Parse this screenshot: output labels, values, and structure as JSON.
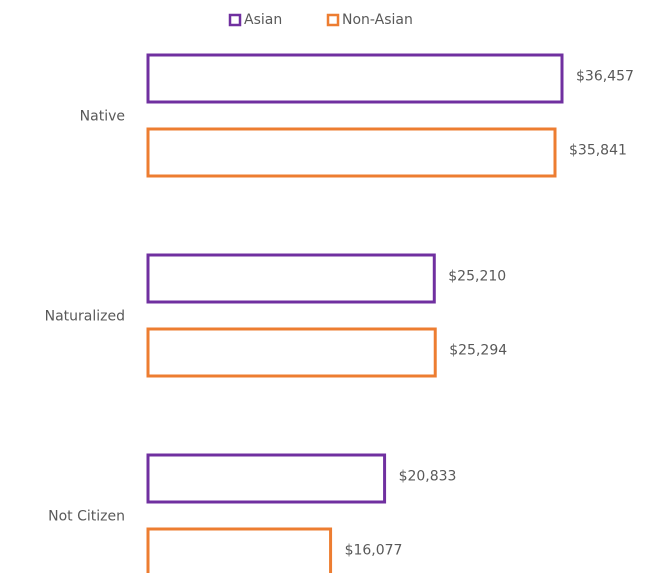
{
  "chart_data": {
    "type": "bar",
    "orientation": "horizontal",
    "categories": [
      "Native",
      "Naturalized",
      "Not Citizen"
    ],
    "series": [
      {
        "name": "Asian",
        "color": "#7030a0",
        "values": [
          36457,
          25210,
          20833
        ],
        "value_labels": [
          "$36,457",
          "$25,210",
          "$20,833"
        ]
      },
      {
        "name": "Non-Asian",
        "color": "#ed7d31",
        "values": [
          35841,
          25294,
          16077
        ],
        "value_labels": [
          "$35,841",
          "$25,294",
          "$16,077"
        ]
      }
    ],
    "legend": "top"
  }
}
